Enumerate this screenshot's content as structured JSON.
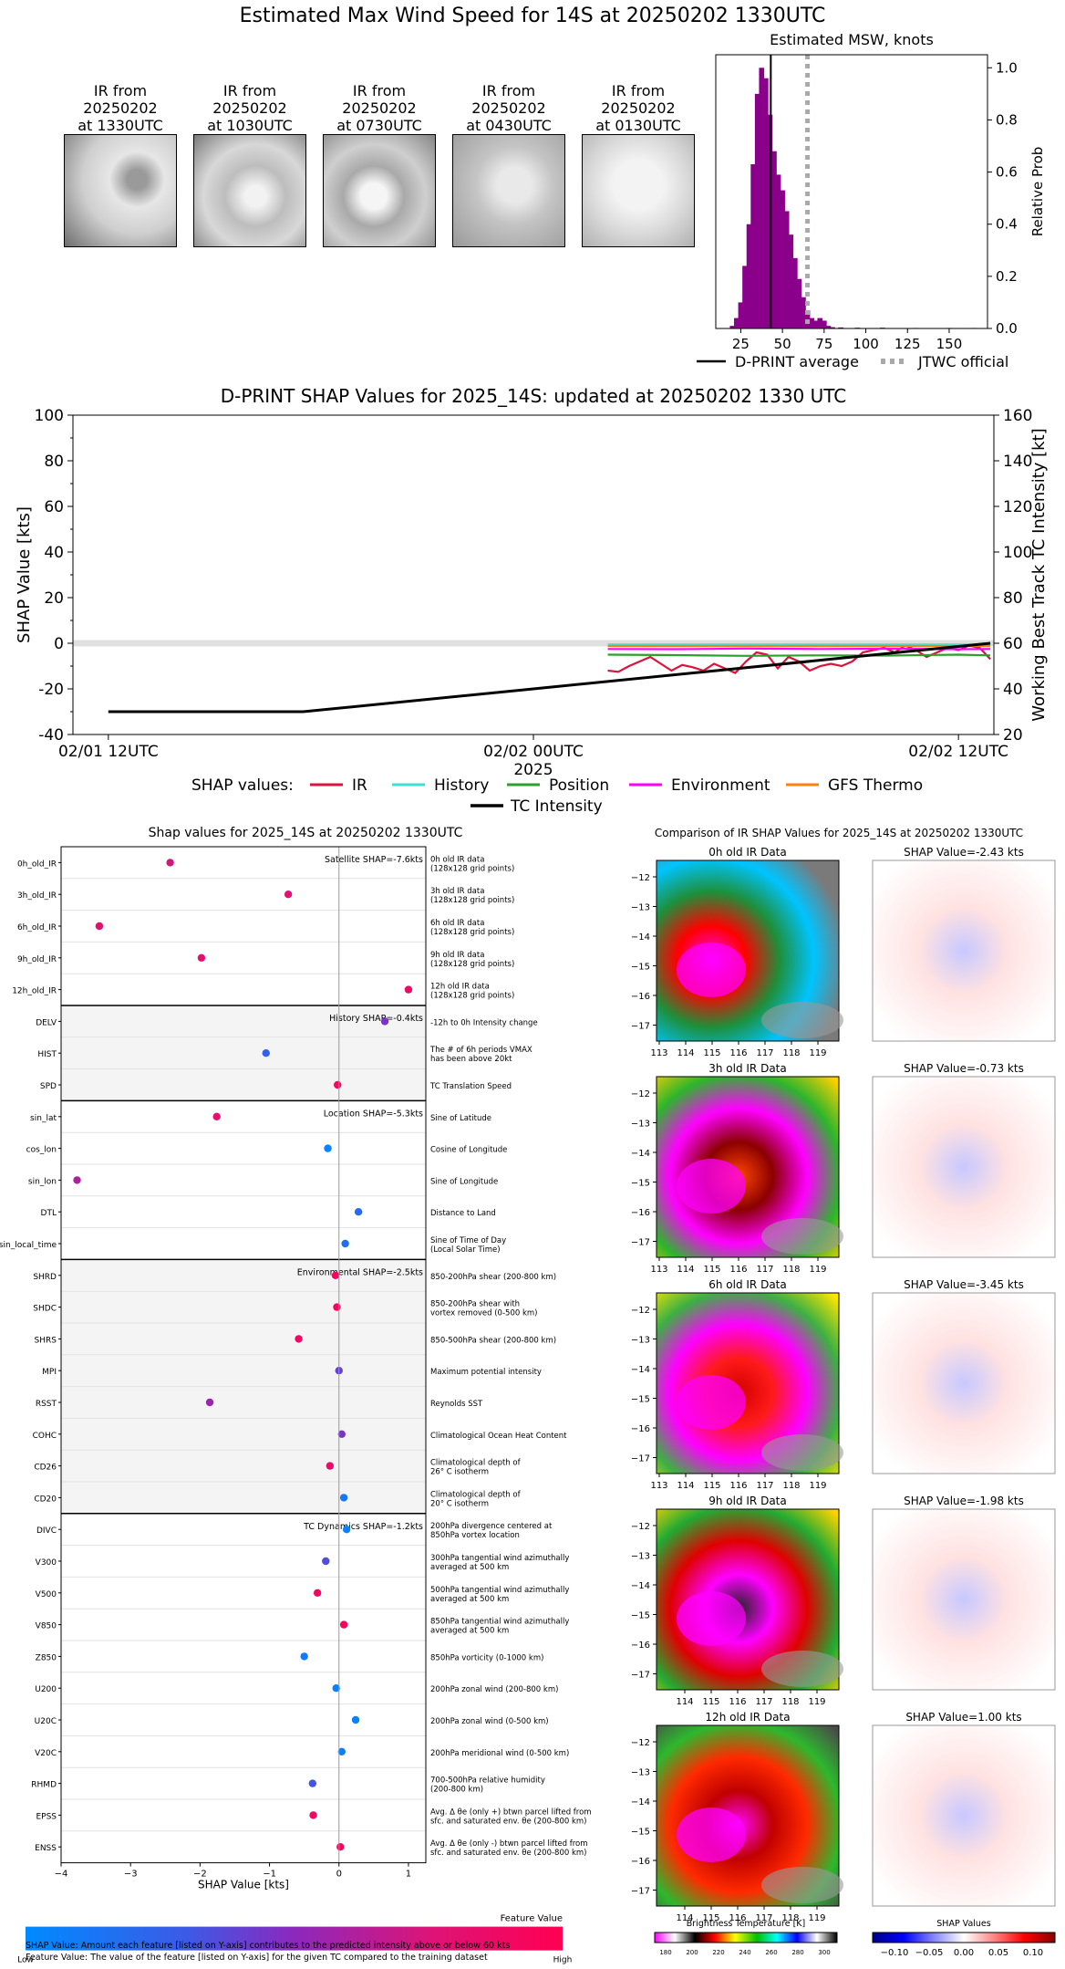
{
  "page_title": "Estimated Max Wind Speed for 14S at 20250202 1330UTC",
  "ir_thumbs": [
    {
      "label": "IR from\n20250202\nat 1330UTC"
    },
    {
      "label": "IR from\n20250202\nat 1030UTC"
    },
    {
      "label": "IR from\n20250202\nat 0730UTC"
    },
    {
      "label": "IR from\n20250202\nat 0430UTC"
    },
    {
      "label": "IR from\n20250202\nat 0130UTC"
    }
  ],
  "colors": {
    "hist": "#8b008b",
    "ir": "#dc143c",
    "history": "#40e0d0",
    "position": "#2ca02c",
    "environment": "#ff00ff",
    "gfs": "#ff7f0e",
    "tc": "#000000"
  },
  "chart_data": [
    {
      "type": "bar",
      "title": "Estimated MSW, knots",
      "ylabel": "Relative Prob",
      "x_ticks": [
        "25",
        "50",
        "75",
        "100",
        "125",
        "150"
      ],
      "y_ticks": [
        "0.0",
        "0.2",
        "0.4",
        "0.6",
        "0.8",
        "1.0"
      ],
      "xlim": [
        10,
        173
      ],
      "ylim": [
        0,
        1.05
      ],
      "bins": [
        [
          20,
          0.01
        ],
        [
          22.5,
          0.04
        ],
        [
          25,
          0.1
        ],
        [
          27.5,
          0.24
        ],
        [
          30,
          0.4
        ],
        [
          32.5,
          0.63
        ],
        [
          35,
          0.9
        ],
        [
          37.5,
          1.0
        ],
        [
          40,
          0.96
        ],
        [
          42.5,
          0.82
        ],
        [
          45,
          0.68
        ],
        [
          47.5,
          0.59
        ],
        [
          50,
          0.53
        ],
        [
          52.5,
          0.45
        ],
        [
          55,
          0.36
        ],
        [
          57.5,
          0.27
        ],
        [
          60,
          0.19
        ],
        [
          62.5,
          0.12
        ],
        [
          65,
          0.07
        ],
        [
          67.5,
          0.04
        ],
        [
          70,
          0.03
        ],
        [
          72.5,
          0.04
        ],
        [
          75,
          0.03
        ],
        [
          77.5,
          0.01
        ],
        [
          80,
          0.005
        ],
        [
          85,
          0.004
        ],
        [
          95,
          0.003
        ],
        [
          110,
          0.003
        ],
        [
          130,
          0.002
        ],
        [
          150,
          0.002
        ],
        [
          165,
          0.002
        ]
      ],
      "dprint_average": 43,
      "jtwc_official": 65,
      "legend": {
        "dprint": "D-PRINT average",
        "jtwc": "JTWC official"
      }
    },
    {
      "type": "line",
      "title": "D-PRINT SHAP Values for 2025_14S: updated at 20250202 1330 UTC",
      "ylabel": "SHAP Value [kts]",
      "y2label": "Working Best Track TC Intensity [kt]",
      "xlabel": "2025",
      "x_ticks": [
        "02/01 12UTC",
        "02/02 00UTC",
        "02/02 12UTC"
      ],
      "y_ticks": [
        "-40",
        "-20",
        "0",
        "20",
        "40",
        "60",
        "80",
        "100"
      ],
      "y2_ticks": [
        "20",
        "40",
        "60",
        "80",
        "100",
        "120",
        "140",
        "160"
      ],
      "ylim": [
        -40,
        100
      ],
      "y2lim": [
        20,
        160
      ],
      "xlim_hours": [
        -1,
        25
      ],
      "legend_prefix": "SHAP values:",
      "series": [
        {
          "name": "IR",
          "hours": [
            14.1,
            14.4,
            14.7,
            15,
            15.3,
            15.6,
            15.9,
            16.2,
            16.5,
            16.8,
            17.1,
            17.4,
            17.7,
            18,
            18.3,
            18.6,
            18.9,
            19.2,
            19.5,
            19.8,
            20.1,
            20.4,
            20.7,
            21,
            21.3,
            21.6,
            21.9,
            22.2,
            22.5,
            22.8,
            23.1,
            23.4,
            23.7,
            24,
            24.3,
            24.6,
            24.9
          ],
          "values": [
            -12,
            -12.5,
            -10,
            -8,
            -6,
            -9,
            -12,
            -9.5,
            -10.5,
            -12,
            -9,
            -11,
            -13,
            -8,
            -4,
            -5,
            -11,
            -6,
            -8,
            -12,
            -10,
            -9,
            -10,
            -8,
            -4,
            -3,
            -2,
            -4,
            -1,
            -3,
            -6,
            -4,
            -2,
            -3,
            -1,
            -2,
            -7
          ]
        },
        {
          "name": "History",
          "hours": [
            14.1,
            24.9
          ],
          "values": [
            -0.5,
            -0.5
          ]
        },
        {
          "name": "Position",
          "hours": [
            14.1,
            16,
            18,
            20,
            22,
            24,
            24.9
          ],
          "values": [
            -5,
            -5.2,
            -5.5,
            -5.3,
            -5.4,
            -5,
            -5.3
          ]
        },
        {
          "name": "Environment",
          "hours": [
            14.1,
            16,
            18,
            20,
            22,
            24,
            24.9
          ],
          "values": [
            -2.5,
            -2.6,
            -2.3,
            -2.5,
            -2.4,
            -2.6,
            -2.5
          ]
        },
        {
          "name": "GFS Thermo",
          "hours": [
            14.1,
            24.9
          ],
          "values": [
            -1.2,
            -1.2
          ]
        },
        {
          "name": "TC Intensity",
          "axis": "right",
          "hours": [
            0,
            5.5,
            12,
            24.9
          ],
          "values": [
            30,
            30,
            40,
            60
          ]
        }
      ]
    },
    {
      "type": "scatter",
      "title": "Shap values for 2025_14S at 20250202 1330UTC",
      "xlabel": "SHAP Value [kts]",
      "x_ticks": [
        "−4",
        "−3",
        "−2",
        "−1",
        "0",
        "1"
      ],
      "xlim": [
        -4,
        1.25
      ],
      "colorbar": {
        "title": "Feature Value",
        "low": "Low",
        "high": "High"
      },
      "groups": [
        {
          "label": "Satellite SHAP=-7.6kts",
          "shaded": false,
          "features": [
            {
              "name": "0h_old_IR",
              "desc": "0h old IR data\n(128x128 grid points)",
              "shap": -2.43,
              "fv": 0.72
            },
            {
              "name": "3h_old_IR",
              "desc": "3h old IR data\n(128x128 grid points)",
              "shap": -0.73,
              "fv": 0.78
            },
            {
              "name": "6h_old_IR",
              "desc": "6h old IR data\n(128x128 grid points)",
              "shap": -3.45,
              "fv": 0.8
            },
            {
              "name": "9h_old_IR",
              "desc": "9h old IR data\n(128x128 grid points)",
              "shap": -1.98,
              "fv": 0.82
            },
            {
              "name": "12h_old_IR",
              "desc": "12h old IR data\n(128x128 grid points)",
              "shap": 1.0,
              "fv": 0.88
            }
          ]
        },
        {
          "label": "History SHAP=-0.4kts",
          "shaded": true,
          "features": [
            {
              "name": "DELV",
              "desc": "-12h to 0h Intensity change",
              "shap": 0.66,
              "fv": 0.45
            },
            {
              "name": "HIST",
              "desc": "The # of 6h periods VMAX\nhas been above 20kt",
              "shap": -1.05,
              "fv": 0.25
            },
            {
              "name": "SPD",
              "desc": "TC Translation Speed",
              "shap": -0.02,
              "fv": 0.9
            }
          ]
        },
        {
          "label": "Location SHAP=-5.3kts",
          "shaded": false,
          "features": [
            {
              "name": "sin_lat",
              "desc": "Sine of Latitude",
              "shap": -1.76,
              "fv": 0.8
            },
            {
              "name": "cos_lon",
              "desc": "Cosine of Longitude",
              "shap": -0.16,
              "fv": 0.05
            },
            {
              "name": "sin_lon",
              "desc": "Sine of Longitude",
              "shap": -3.77,
              "fv": 0.6
            },
            {
              "name": "DTL",
              "desc": "Distance to Land",
              "shap": 0.28,
              "fv": 0.2
            },
            {
              "name": "sin_local_time",
              "desc": "Sine of Time of Day\n(Local Solar Time)",
              "shap": 0.09,
              "fv": 0.18
            }
          ]
        },
        {
          "label": "Environmental SHAP=-2.5kts",
          "shaded": true,
          "features": [
            {
              "name": "SHRD",
              "desc": "850-200hPa shear (200-800 km)",
              "shap": -0.05,
              "fv": 0.92
            },
            {
              "name": "SHDC",
              "desc": "850-200hPa shear with\nvortex removed (0-500 km)",
              "shap": -0.03,
              "fv": 0.93
            },
            {
              "name": "SHRS",
              "desc": "850-500hPa shear (200-800 km)",
              "shap": -0.58,
              "fv": 0.88
            },
            {
              "name": "MPI",
              "desc": "Maximum potential intensity",
              "shap": 0.0,
              "fv": 0.4
            },
            {
              "name": "RSST",
              "desc": "Reynolds SST",
              "shap": -1.86,
              "fv": 0.55
            },
            {
              "name": "COHC",
              "desc": "Climatological Ocean Heat Content",
              "shap": 0.04,
              "fv": 0.45
            },
            {
              "name": "CD26",
              "desc": "Climatological depth of\n26° C isotherm",
              "shap": -0.13,
              "fv": 0.85
            },
            {
              "name": "CD20",
              "desc": "Climatological depth of\n20° C isotherm",
              "shap": 0.07,
              "fv": 0.12
            }
          ]
        },
        {
          "label": "TC Dynamics SHAP=-1.2kts",
          "shaded": false,
          "features": [
            {
              "name": "DIVC",
              "desc": "200hPa divergence centered at\n850hPa vortex location",
              "shap": 0.11,
              "fv": 0.05
            },
            {
              "name": "V300",
              "desc": "300hPa tangential wind azimuthally\naveraged at 500 km",
              "shap": -0.19,
              "fv": 0.35
            },
            {
              "name": "V500",
              "desc": "500hPa tangential wind azimuthally\naveraged at 500 km",
              "shap": -0.31,
              "fv": 0.9
            },
            {
              "name": "V850",
              "desc": "850hPa tangential wind azimuthally\naveraged at 500 km",
              "shap": 0.07,
              "fv": 0.92
            },
            {
              "name": "Z850",
              "desc": "850hPa vorticity (0-1000 km)",
              "shap": -0.5,
              "fv": 0.1
            },
            {
              "name": "U200",
              "desc": "200hPa zonal wind (200-800 km)",
              "shap": -0.04,
              "fv": 0.06
            },
            {
              "name": "U20C",
              "desc": "200hPa zonal wind (0-500 km)",
              "shap": 0.24,
              "fv": 0.05
            },
            {
              "name": "V20C",
              "desc": "200hPa meridional wind (0-500 km)",
              "shap": 0.04,
              "fv": 0.06
            },
            {
              "name": "RHMD",
              "desc": "700-500hPa relative humidity\n(200-800 km)",
              "shap": -0.38,
              "fv": 0.32
            },
            {
              "name": "EPSS",
              "desc": "Avg. Δ θe (only +) btwn parcel lifted from\nsfc. and saturated env. θe (200-800 km)",
              "shap": -0.37,
              "fv": 0.88
            },
            {
              "name": "ENSS",
              "desc": "Avg. Δ θe (only -) btwn parcel lifted from\nsfc. and saturated env. θe (200-800 km)",
              "shap": 0.02,
              "fv": 0.92
            }
          ]
        }
      ]
    }
  ],
  "ir_compare": {
    "title": "Comparison of IR SHAP Values for 2025_14S at 20250202 1330UTC",
    "y_ticks": [
      "−12",
      "−13",
      "−14",
      "−15",
      "−16",
      "−17"
    ],
    "x_ticks_a": [
      "113",
      "114",
      "115",
      "116",
      "117",
      "118",
      "119"
    ],
    "x_ticks_b": [
      "114",
      "115",
      "116",
      "117",
      "118",
      "119"
    ],
    "rows": [
      {
        "ir_title": "0h old IR Data",
        "shap_title": "SHAP Value=-2.43 kts"
      },
      {
        "ir_title": "3h old IR Data",
        "shap_title": "SHAP Value=-0.73 kts"
      },
      {
        "ir_title": "6h old IR Data",
        "shap_title": "SHAP Value=-3.45 kts"
      },
      {
        "ir_title": "9h old IR Data",
        "shap_title": "SHAP Value=-1.98 kts"
      },
      {
        "ir_title": "12h old IR Data",
        "shap_title": "SHAP Value=1.00 kts"
      }
    ],
    "bt_colorbar": {
      "title": "Brightness Temperature [K]",
      "ticks": [
        "180",
        "200",
        "220",
        "240",
        "260",
        "280",
        "300"
      ]
    },
    "shap_colorbar": {
      "title": "SHAP Values",
      "ticks": [
        "−0.10",
        "−0.05",
        "0.00",
        "0.05",
        "0.10"
      ]
    }
  },
  "footnotes": {
    "line1": "SHAP Value: Amount each feature [listed on Y-axis] contributes to the predicted intensity above or below 60 kts",
    "line2": "Feature Value: The value of the feature [listed on Y-axis] for the given TC compared to the training dataset"
  }
}
